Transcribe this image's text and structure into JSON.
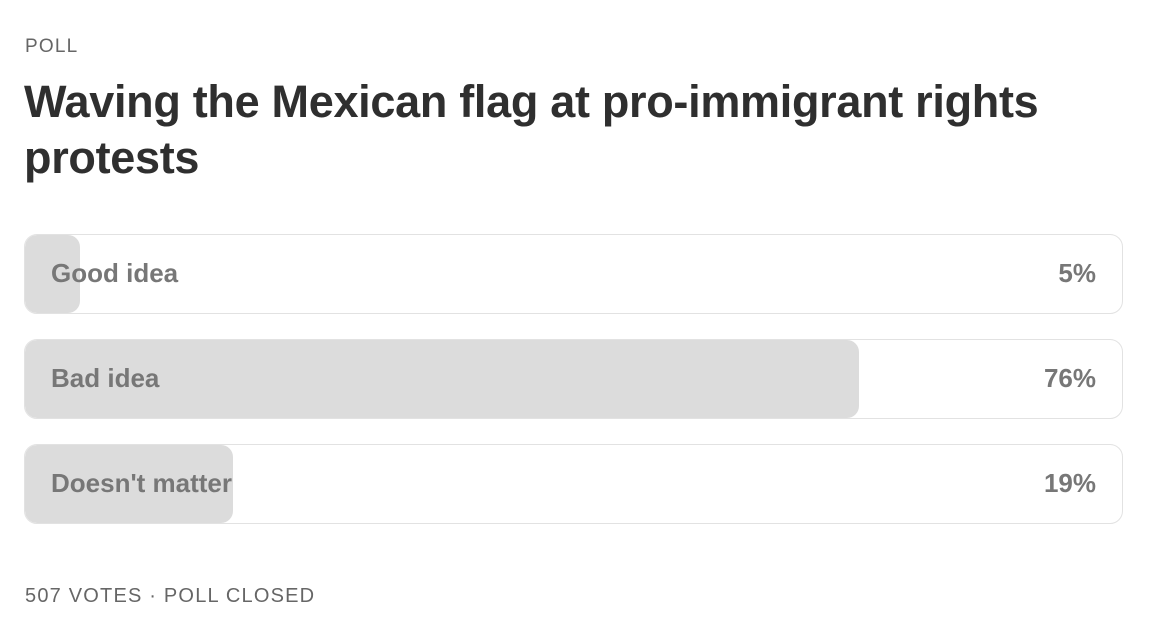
{
  "poll": {
    "label": "POLL",
    "title": "Waving the Mexican flag at pro-immigrant rights protests",
    "options": [
      {
        "label": "Good idea",
        "value": 5,
        "value_label": "5%"
      },
      {
        "label": "Bad idea",
        "value": 76,
        "value_label": "76%"
      },
      {
        "label": "Doesn't matter",
        "value": 19,
        "value_label": "19%"
      }
    ],
    "footer": "507 VOTES · POLL CLOSED"
  }
}
